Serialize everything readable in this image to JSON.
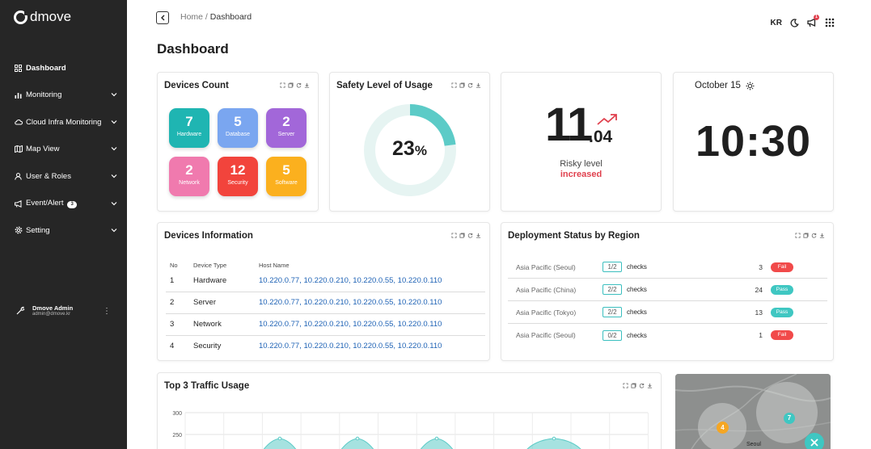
{
  "app": {
    "brand": "dmove"
  },
  "sidebar": {
    "items": [
      {
        "label": "Dashboard",
        "icon": "dashboard-icon",
        "has_chevron": false
      },
      {
        "label": "Monitoring",
        "icon": "bar-chart-icon",
        "has_chevron": true
      },
      {
        "label": "Cloud Infra Monitoring",
        "icon": "cloud-icon",
        "has_chevron": true
      },
      {
        "label": "Map View",
        "icon": "map-icon",
        "has_chevron": true
      },
      {
        "label": "User & Roles",
        "icon": "user-icon",
        "has_chevron": true
      },
      {
        "label": "Event/Alert",
        "icon": "megaphone-icon",
        "has_chevron": true,
        "badge": "3"
      },
      {
        "label": "Setting",
        "icon": "gear-icon",
        "has_chevron": true
      }
    ],
    "user": {
      "name": "Dmove Admin",
      "email": "admin@dmove.kr"
    }
  },
  "header": {
    "breadcrumb_home": "Home",
    "breadcrumb_sep": " / ",
    "breadcrumb_current": "Dashboard",
    "lang": "KR",
    "page_title": "Dashboard",
    "notification_count": "1"
  },
  "devices_count": {
    "title": "Devices Count",
    "tiles": [
      {
        "count": "7",
        "label": "Hardware",
        "color": "#1fb5b2"
      },
      {
        "count": "5",
        "label": "Database",
        "color": "#7aa6f0"
      },
      {
        "count": "2",
        "label": "Server",
        "color": "#a267d9"
      },
      {
        "count": "2",
        "label": "Network",
        "color": "#f07aae"
      },
      {
        "count": "12",
        "label": "Security",
        "color": "#f2443c"
      },
      {
        "count": "5",
        "label": "Software",
        "color": "#fbb01e"
      }
    ]
  },
  "safety": {
    "title": "Safety Level of Usage",
    "percent_value": "23",
    "percent_sign": "%",
    "fraction": 0.23,
    "track_color": "#e6f4f2",
    "fill_color": "#5ccbc7"
  },
  "risk": {
    "integer": "11",
    "decimal": ".04",
    "label": "Risky level",
    "state": "increased",
    "trend_color": "#e0414e"
  },
  "clock": {
    "date": "October 15",
    "time": "10:30"
  },
  "devices_info": {
    "title": "Devices Information",
    "columns": [
      "No",
      "Device Type",
      "Host Name"
    ],
    "rows": [
      {
        "no": "1",
        "type": "Hardware",
        "hosts": "10.220.0.77, 10.220.0.210, 10.220.0.55, 10.220.0.110"
      },
      {
        "no": "2",
        "type": "Server",
        "hosts": "10.220.0.77, 10.220.0.210, 10.220.0.55, 10.220.0.110"
      },
      {
        "no": "3",
        "type": "Network",
        "hosts": "10.220.0.77, 10.220.0.210, 10.220.0.55, 10.220.0.110"
      },
      {
        "no": "4",
        "type": "Security",
        "hosts": "10.220.0.77, 10.220.0.210, 10.220.0.55, 10.220.0.110"
      }
    ]
  },
  "deployment": {
    "title": "Deployment Status by Region",
    "rows": [
      {
        "region": "Asia Pacific (Seoul)",
        "ratio": "1/2",
        "checks": "checks",
        "count": "3",
        "status": "Fail",
        "status_color": "#f14a4a"
      },
      {
        "region": "Asia Pacific (China)",
        "ratio": "2/2",
        "checks": "checks",
        "count": "24",
        "status": "Pass",
        "status_color": "#3fc7c2"
      },
      {
        "region": "Asia Pacific (Tokyo)",
        "ratio": "2/2",
        "checks": "checks",
        "count": "13",
        "status": "Pass",
        "status_color": "#3fc7c2"
      },
      {
        "region": "Asia Pacific (Seoul)",
        "ratio": "0/2",
        "checks": "checks",
        "count": "1",
        "status": "Fail",
        "status_color": "#f14a4a"
      }
    ]
  },
  "traffic": {
    "title": "Top 3 Traffic Usage"
  },
  "chart_data": {
    "type": "area",
    "title": "Top 3 Traffic Usage",
    "y_ticks": [
      "300",
      "250"
    ],
    "ylim": [
      0,
      300
    ],
    "grid": true,
    "series_color": "#5ccbc7"
  },
  "map": {
    "city_label": "Seoul",
    "markers": [
      {
        "count": "4",
        "color": "#f5a623"
      },
      {
        "count": "7",
        "color": "#3fc7c2"
      }
    ]
  }
}
